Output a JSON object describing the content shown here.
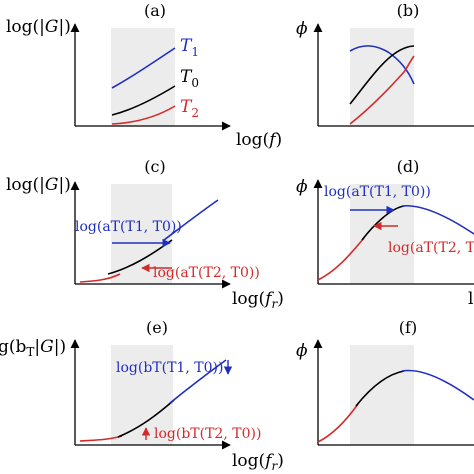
{
  "colors": {
    "black": "#000000",
    "blue": "#1f2fbf",
    "red": "#d42a2a",
    "shade": "#ececec"
  },
  "panels": {
    "a": {
      "tag": "(a)",
      "ylabel_pre": "log(|",
      "ylabel_var": "G",
      "ylabel_post": "|)",
      "xlabel_pre": "log(",
      "xlabel_var": "f",
      "xlabel_post": ")",
      "t1_base": "T",
      "t1_sub": "1",
      "t0_base": "T",
      "t0_sub": "0",
      "t2_base": "T",
      "t2_sub": "2"
    },
    "b": {
      "tag": "(b)",
      "ylabel": "ϕ"
    },
    "c": {
      "tag": "(c)",
      "ylabel_pre": "log(|",
      "ylabel_var": "G",
      "ylabel_post": "|)",
      "xlabel_pre": "log(",
      "xlabel_var": "f",
      "xlabel_sub": "r",
      "xlabel_post": ")",
      "shift_blue": "log(aT(T1, T0))",
      "shift_red": "log(aT(T2, T0))"
    },
    "d": {
      "tag": "(d)",
      "ylabel": "ϕ",
      "shift_blue": "log(aT(T1, T0))",
      "shift_red": "log(aT(T2, T",
      "edge_glyph": "l"
    },
    "e": {
      "tag": "(e)",
      "ylabel_pre": "g(b",
      "ylabel_sub": "T",
      "ylabel_mid": "|",
      "ylabel_var": "G",
      "ylabel_post": "|)",
      "xlabel_pre": "log(",
      "xlabel_var": "f",
      "xlabel_sub": "r",
      "xlabel_post": ")",
      "shift_blue": "log(bT(T1, T0))",
      "shift_red": "log(bT(T2, T0))"
    },
    "f": {
      "tag": "(f)",
      "ylabel": "ϕ"
    }
  }
}
